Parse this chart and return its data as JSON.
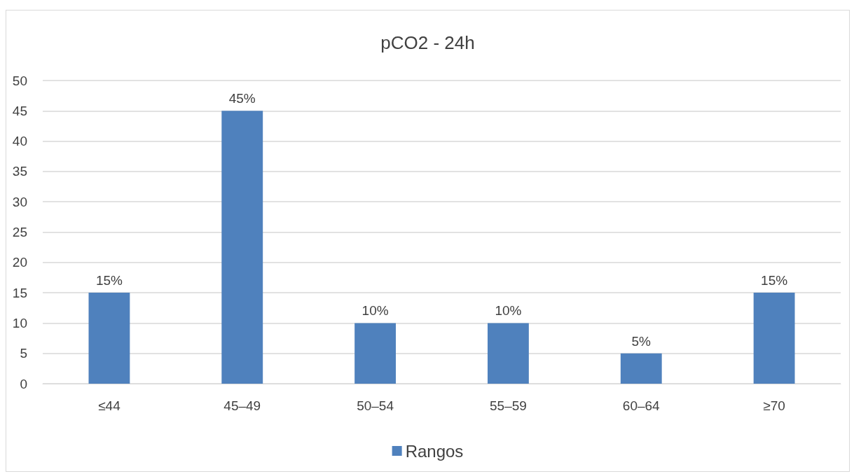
{
  "chart_data": {
    "type": "bar",
    "title": "pCO2 - 24h",
    "categories": [
      "≤44",
      "45–49",
      "50–54",
      "55–59",
      "60–64",
      "≥70"
    ],
    "series": [
      {
        "name": "Rangos",
        "color": "#4f81bd",
        "values": [
          15,
          45,
          10,
          10,
          5,
          15
        ],
        "value_labels": [
          "15%",
          "45%",
          "10%",
          "10%",
          "5%",
          "15%"
        ]
      }
    ],
    "ylim": [
      0,
      50
    ],
    "yticks": [
      0,
      5,
      10,
      15,
      20,
      25,
      30,
      35,
      40,
      45,
      50
    ],
    "grid": "y",
    "legend": "bottom"
  }
}
